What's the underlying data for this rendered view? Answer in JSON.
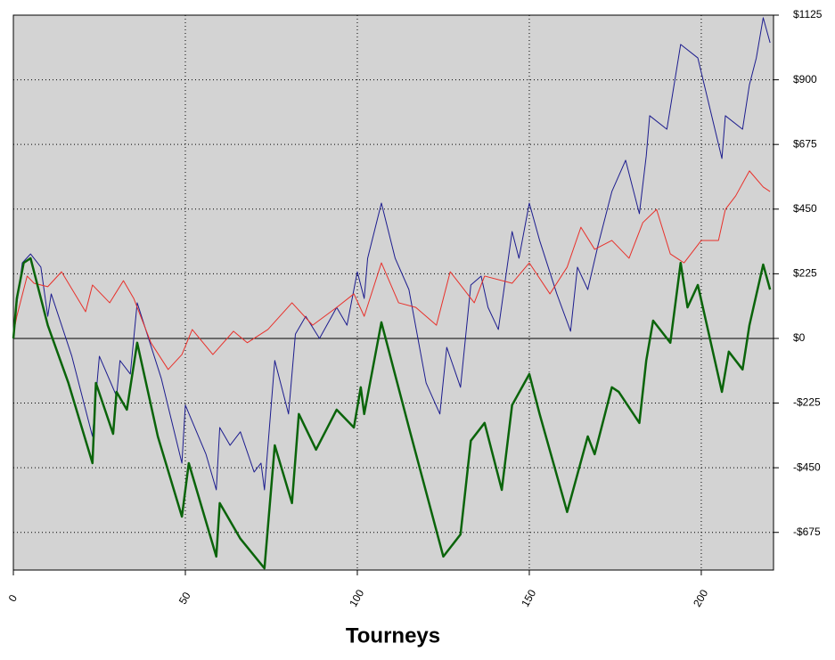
{
  "chart_data": {
    "type": "line",
    "xlabel": "Tourneys",
    "xlim": [
      0,
      221
    ],
    "xticks": [
      0,
      50,
      100,
      150,
      200
    ],
    "ylim": [
      -806,
      1125
    ],
    "yticks": [
      {
        "value": 1125,
        "label": "$1125"
      },
      {
        "value": 900,
        "label": "$900"
      },
      {
        "value": 675,
        "label": "$675"
      },
      {
        "value": 450,
        "label": "$450"
      },
      {
        "value": 225,
        "label": "$225"
      },
      {
        "value": 0,
        "label": "$0"
      },
      {
        "value": -225,
        "label": "-$225"
      },
      {
        "value": -450,
        "label": "-$450"
      },
      {
        "value": -675,
        "label": "-$675"
      }
    ],
    "grid": true,
    "series": [
      {
        "color": "#1c1c8e",
        "width": 1,
        "x": [
          0,
          2.6,
          5,
          8,
          10,
          11,
          17,
          23,
          25,
          30,
          31,
          34,
          36,
          43,
          49,
          50,
          56,
          59,
          60,
          63,
          66,
          70,
          72,
          73,
          76,
          80,
          82,
          85,
          89,
          94,
          97,
          100,
          102,
          103,
          107,
          111,
          115,
          120,
          124,
          126,
          130,
          133,
          136,
          138,
          141,
          145,
          147,
          150,
          153,
          158,
          162,
          164,
          167,
          170,
          174,
          178,
          182,
          184,
          185,
          190,
          194,
          199,
          206,
          207,
          212,
          214,
          216,
          218,
          220
        ],
        "values": [
          31,
          263,
          294,
          248,
          77,
          155,
          -62,
          -341,
          -62,
          -201,
          -77,
          -124,
          124,
          -139,
          -434,
          -232,
          -403,
          -527,
          -310,
          -372,
          -325,
          -465,
          -434,
          -527,
          -77,
          -263,
          15,
          77,
          0,
          108,
          46,
          232,
          139,
          279,
          471,
          279,
          170,
          -155,
          -263,
          -31,
          -170,
          186,
          217,
          108,
          31,
          372,
          279,
          471,
          341,
          155,
          25,
          248,
          170,
          325,
          511,
          620,
          434,
          635,
          775,
          728,
          1023,
          976,
          626,
          775,
          728,
          883,
          976,
          1116,
          1029
        ]
      },
      {
        "color": "#e8302a",
        "width": 1,
        "x": [
          0,
          1,
          4,
          6,
          10,
          14,
          21,
          23,
          28,
          32,
          35,
          40,
          45,
          49,
          52,
          58,
          64,
          68,
          74,
          81,
          87,
          94,
          99,
          102,
          107,
          112,
          117,
          123,
          127,
          130,
          134,
          137,
          145,
          150,
          156,
          161,
          165,
          169,
          174,
          179,
          183,
          187,
          191,
          195,
          200,
          205,
          207,
          210,
          214,
          218,
          220
        ],
        "values": [
          15,
          77,
          217,
          192,
          180,
          232,
          93,
          186,
          124,
          201,
          139,
          -15,
          -108,
          -56,
          31,
          -56,
          25,
          -15,
          31,
          124,
          46,
          108,
          155,
          77,
          263,
          124,
          108,
          46,
          232,
          186,
          124,
          217,
          192,
          263,
          155,
          248,
          387,
          310,
          341,
          279,
          403,
          449,
          294,
          263,
          341,
          341,
          449,
          496,
          583,
          527,
          511
        ]
      },
      {
        "color": "#0a640a",
        "width": 2.5,
        "x": [
          0,
          1,
          3,
          5,
          10,
          16,
          23,
          24,
          29,
          30,
          33,
          36,
          42,
          49,
          51,
          59,
          60,
          66,
          73,
          76,
          81,
          83,
          88,
          94,
          99,
          101,
          102,
          107,
          115,
          125,
          130,
          133,
          137,
          142,
          145,
          150,
          153,
          161,
          167,
          169,
          174,
          176,
          182,
          184,
          186,
          191,
          194,
          196,
          199,
          206,
          208,
          212,
          214,
          218,
          220
        ],
        "values": [
          0,
          139,
          263,
          279,
          46,
          -155,
          -434,
          -155,
          -332,
          -186,
          -248,
          -15,
          -341,
          -620,
          -434,
          -759,
          -573,
          -697,
          -800,
          -372,
          -573,
          -263,
          -387,
          -248,
          -310,
          -170,
          -263,
          56,
          -310,
          -759,
          -682,
          -356,
          -294,
          -527,
          -232,
          -124,
          -263,
          -604,
          -341,
          -403,
          -170,
          -186,
          -294,
          -77,
          62,
          -15,
          263,
          108,
          186,
          -186,
          -46,
          -108,
          46,
          257,
          170
        ]
      }
    ]
  }
}
